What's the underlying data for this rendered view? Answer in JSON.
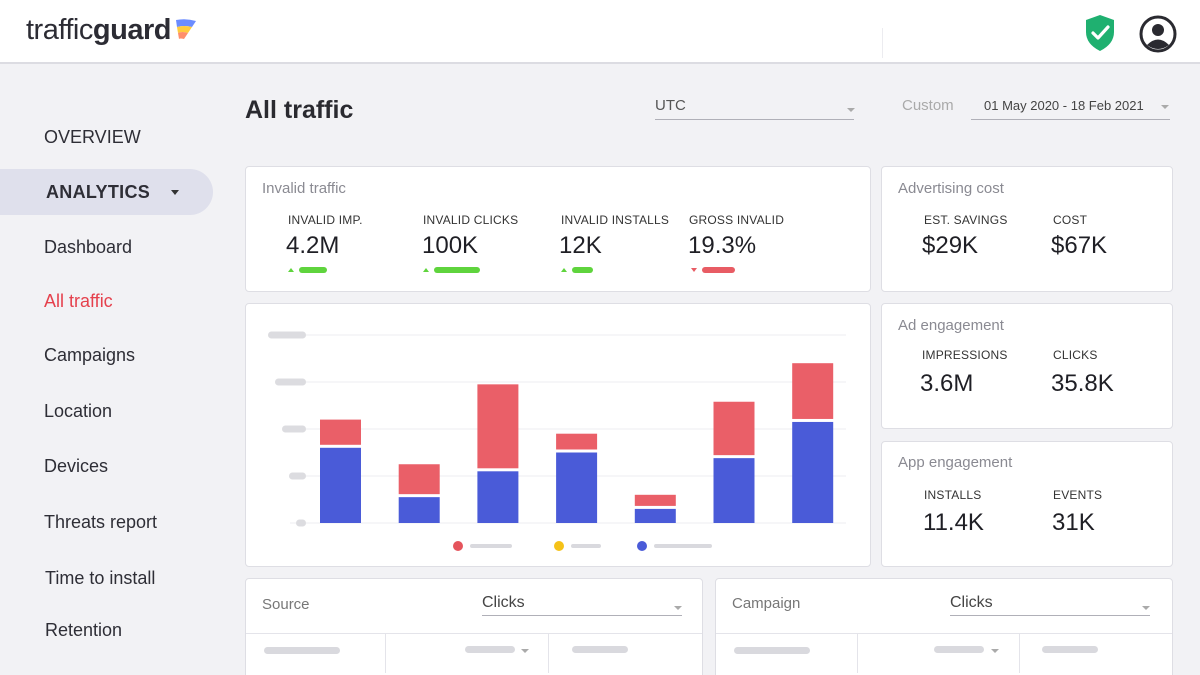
{
  "brand": {
    "logo_light": "traffic",
    "logo_bold": "guard"
  },
  "header": {
    "shield_icon": "shield-check-icon",
    "user_icon": "user-avatar-icon"
  },
  "sidebar": {
    "overview": "OVERVIEW",
    "analytics": "ANALYTICS",
    "items": [
      {
        "label": "Dashboard"
      },
      {
        "label": "All traffic",
        "active": true,
        "color": "#e5414d"
      },
      {
        "label": "Campaigns"
      },
      {
        "label": "Location"
      },
      {
        "label": "Devices"
      },
      {
        "label": "Threats report"
      },
      {
        "label": "Time to install"
      },
      {
        "label": "Retention"
      }
    ]
  },
  "page": {
    "title": "All traffic",
    "timezone": "UTC",
    "range_label": "Custom",
    "date_range": "01 May 2020 - 18 Feb 2021"
  },
  "invalid_traffic": {
    "title": "Invalid traffic",
    "metrics": [
      {
        "label": "INVALID IMP.",
        "value": "4.2M",
        "trend": "up"
      },
      {
        "label": "INVALID CLICKS",
        "value": "100K",
        "trend": "up"
      },
      {
        "label": "INVALID INSTALLS",
        "value": "12K",
        "trend": "up"
      },
      {
        "label": "GROSS INVALID",
        "value": "19.3%",
        "trend": "down"
      }
    ]
  },
  "advertising_cost": {
    "title": "Advertising cost",
    "metrics": [
      {
        "label": "EST. SAVINGS",
        "value": "$29K"
      },
      {
        "label": "COST",
        "value": "$67K"
      }
    ]
  },
  "ad_engagement": {
    "title": "Ad engagement",
    "metrics": [
      {
        "label": "IMPRESSIONS",
        "value": "3.6M"
      },
      {
        "label": "CLICKS",
        "value": "35.8K"
      }
    ]
  },
  "app_engagement": {
    "title": "App engagement",
    "metrics": [
      {
        "label": "INSTALLS",
        "value": "11.4K"
      },
      {
        "label": "EVENTS",
        "value": "31K"
      }
    ]
  },
  "chart_data": {
    "type": "bar",
    "stacked": true,
    "title": "",
    "xlabel": "",
    "ylabel": "",
    "ylim": [
      0,
      4
    ],
    "grid": true,
    "categories": [
      "",
      "",
      "",
      "",
      "",
      "",
      ""
    ],
    "series": [
      {
        "color": "#4a5bd8",
        "values": [
          1.6,
          0.55,
          1.1,
          1.5,
          0.3,
          1.38,
          2.15
        ]
      },
      {
        "color": "#ea5f68",
        "values": [
          0.6,
          0.7,
          1.85,
          0.4,
          0.3,
          1.2,
          1.25
        ]
      }
    ],
    "legend_colors": [
      "#e5545c",
      "#f5c218",
      "#4a5bd8"
    ],
    "legend_position": "bottom"
  },
  "source_table": {
    "title": "Source",
    "metric": "Clicks"
  },
  "campaign_table": {
    "title": "Campaign",
    "metric": "Clicks"
  },
  "colors": {
    "accent_red": "#e5414d",
    "positive": "#5fd43d",
    "negative": "#e85c64",
    "shield": "#1fb070"
  }
}
